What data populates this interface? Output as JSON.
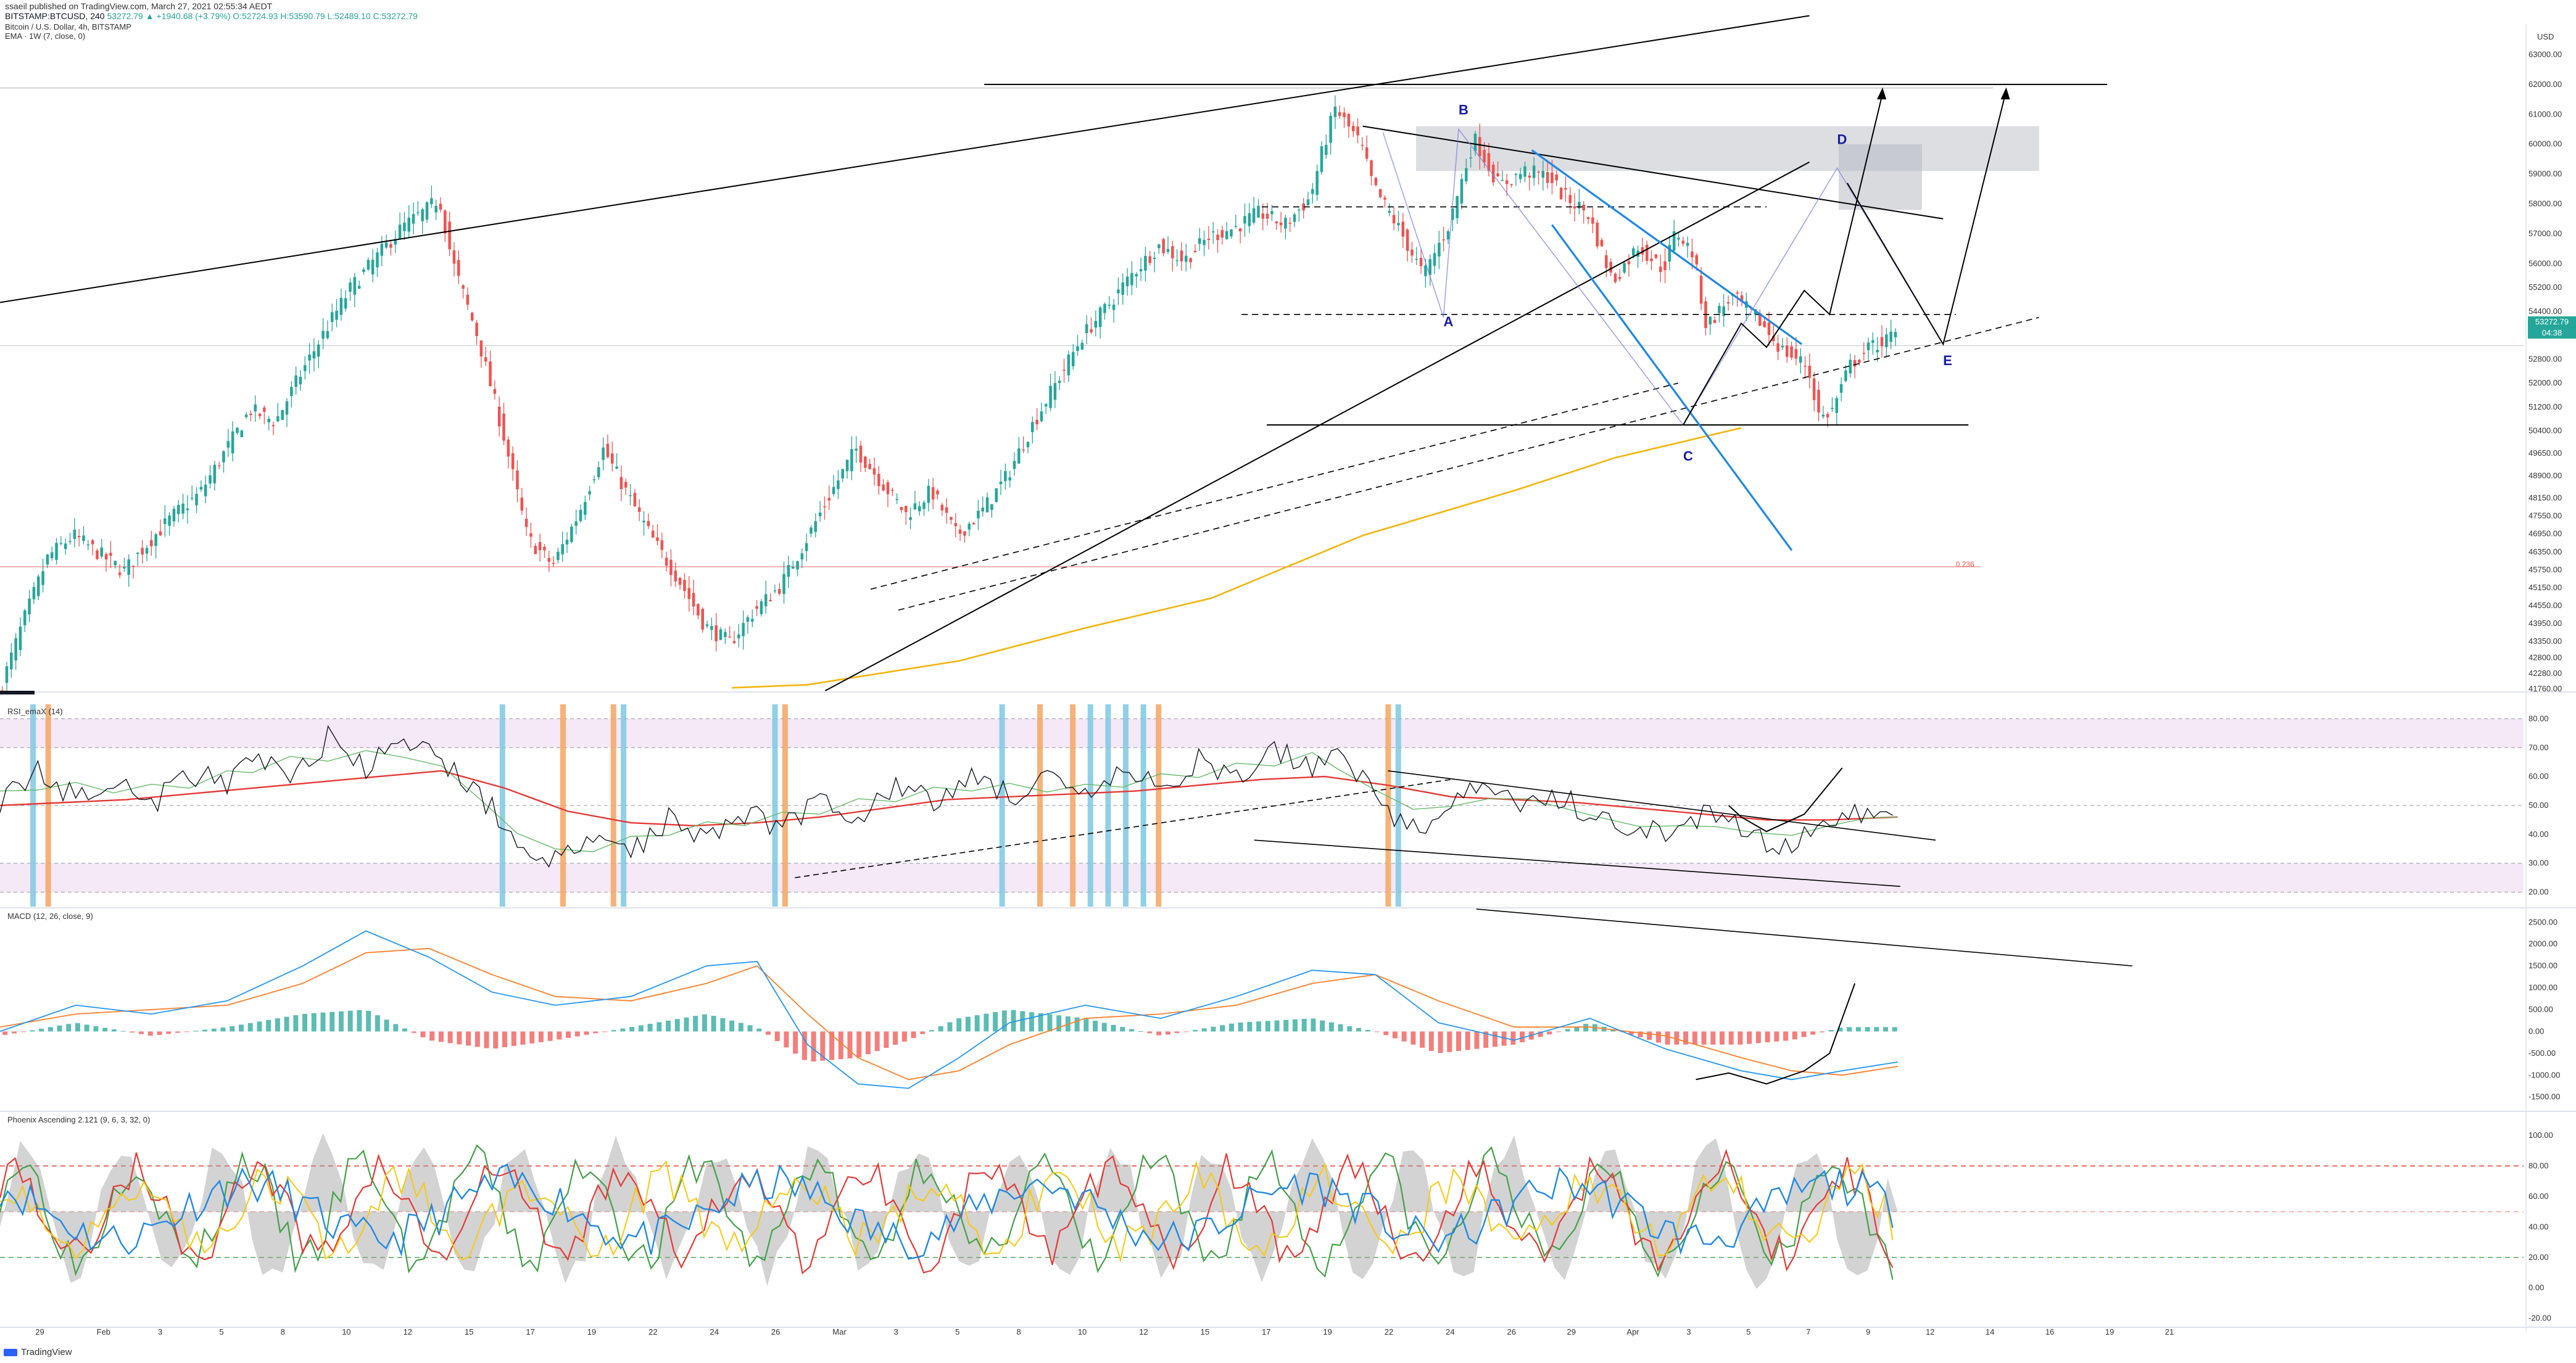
{
  "header": {
    "published": "ssaeil published on TradingView.com, March 27, 2021 02:55:34 AEDT",
    "symbol": "BITSTAMP:BTCUSD, 240",
    "ohlc": "53272.79 ▲ +1940.68 (+3.79%) O:52724.93 H:53590.79 L:52489.10 C:53272.79",
    "title": "Bitcoin / U.S. Dollar, 4h, BITSTAMP",
    "ema_label": "EMA · 1W (7, close, 0)"
  },
  "currency": "USD",
  "price_badge": {
    "value": "53272.79",
    "time": "04:38",
    "color": "#26a69a"
  },
  "footer": {
    "brand": "TradingView"
  },
  "colors": {
    "up": "#26a69a",
    "down": "#ef5350",
    "ema": "#f5b40a",
    "trend_blue": "#1e88e5",
    "fib": "#ef5350"
  },
  "chart_data": [
    {
      "type": "candlestick",
      "title": "Bitcoin / U.S. Dollar, 4h, BITSTAMP",
      "ylim": [
        41700,
        64000
      ],
      "y_ticks": [
        63000,
        62000,
        61000,
        60000,
        59000,
        58000,
        57000,
        56000,
        55200,
        54400,
        53600,
        52800,
        52000,
        51200,
        50400,
        49650,
        48900,
        48150,
        47550,
        46950,
        46350,
        45750,
        45150,
        44550,
        43950,
        43350,
        42800,
        42280,
        41760
      ],
      "x_ticks": [
        "29",
        "Feb",
        "3",
        "5",
        "8",
        "10",
        "12",
        "15",
        "17",
        "19",
        "22",
        "24",
        "26",
        "Mar",
        "3",
        "5",
        "8",
        "10",
        "12",
        "15",
        "17",
        "19",
        "22",
        "24",
        "26",
        "29",
        "Apr",
        "3",
        "5",
        "7",
        "9",
        "12",
        "14",
        "16",
        "19",
        "21"
      ],
      "price_path": [
        [
          0.0,
          41500
        ],
        [
          0.01,
          44000
        ],
        [
          0.02,
          46200
        ],
        [
          0.03,
          46900
        ],
        [
          0.04,
          46300
        ],
        [
          0.05,
          45700
        ],
        [
          0.06,
          46700
        ],
        [
          0.07,
          47600
        ],
        [
          0.08,
          48300
        ],
        [
          0.09,
          49700
        ],
        [
          0.1,
          51100
        ],
        [
          0.11,
          50700
        ],
        [
          0.12,
          52300
        ],
        [
          0.13,
          53800
        ],
        [
          0.14,
          55200
        ],
        [
          0.15,
          56200
        ],
        [
          0.16,
          57200
        ],
        [
          0.17,
          57800
        ],
        [
          0.175,
          58200
        ],
        [
          0.18,
          56100
        ],
        [
          0.19,
          53600
        ],
        [
          0.2,
          50400
        ],
        [
          0.21,
          46800
        ],
        [
          0.22,
          45900
        ],
        [
          0.23,
          47600
        ],
        [
          0.24,
          49800
        ],
        [
          0.25,
          48200
        ],
        [
          0.26,
          46700
        ],
        [
          0.27,
          45400
        ],
        [
          0.28,
          43900
        ],
        [
          0.29,
          43300
        ],
        [
          0.3,
          44400
        ],
        [
          0.31,
          45200
        ],
        [
          0.32,
          46700
        ],
        [
          0.33,
          48300
        ],
        [
          0.34,
          49800
        ],
        [
          0.35,
          48700
        ],
        [
          0.36,
          47600
        ],
        [
          0.37,
          48400
        ],
        [
          0.38,
          46900
        ],
        [
          0.39,
          47700
        ],
        [
          0.4,
          48900
        ],
        [
          0.41,
          50600
        ],
        [
          0.42,
          52100
        ],
        [
          0.43,
          53600
        ],
        [
          0.44,
          54600
        ],
        [
          0.45,
          55700
        ],
        [
          0.46,
          56600
        ],
        [
          0.47,
          56100
        ],
        [
          0.48,
          56900
        ],
        [
          0.49,
          57200
        ],
        [
          0.5,
          57700
        ],
        [
          0.51,
          57300
        ],
        [
          0.52,
          58200
        ],
        [
          0.525,
          59800
        ],
        [
          0.53,
          61200
        ],
        [
          0.54,
          60000
        ],
        [
          0.545,
          58600
        ],
        [
          0.555,
          57200
        ],
        [
          0.565,
          55600
        ],
        [
          0.575,
          57300
        ],
        [
          0.585,
          60200
        ],
        [
          0.595,
          58600
        ],
        [
          0.605,
          59100
        ],
        [
          0.615,
          58900
        ],
        [
          0.62,
          58300
        ],
        [
          0.63,
          57700
        ],
        [
          0.64,
          55400
        ],
        [
          0.65,
          56600
        ],
        [
          0.66,
          55800
        ],
        [
          0.665,
          57100
        ],
        [
          0.672,
          56300
        ],
        [
          0.677,
          53900
        ],
        [
          0.687,
          54900
        ],
        [
          0.697,
          54200
        ],
        [
          0.707,
          53100
        ],
        [
          0.717,
          52600
        ],
        [
          0.722,
          50800
        ],
        [
          0.727,
          51100
        ],
        [
          0.734,
          52600
        ],
        [
          0.742,
          53200
        ],
        [
          0.752,
          53600
        ]
      ],
      "series": [
        {
          "name": "EMA · 1W (7, close, 0)",
          "points": [
            [
              0.29,
              41800
            ],
            [
              0.32,
              41900
            ],
            [
              0.38,
              42700
            ],
            [
              0.43,
              43800
            ],
            [
              0.48,
              44800
            ],
            [
              0.54,
              46900
            ],
            [
              0.6,
              48400
            ],
            [
              0.64,
              49500
            ],
            [
              0.69,
              50500
            ]
          ]
        }
      ],
      "annotations": [
        {
          "type": "label",
          "text": "A",
          "x": 0.572,
          "y": 53900
        },
        {
          "type": "label",
          "text": "B",
          "x": 0.578,
          "y": 61000
        },
        {
          "type": "label",
          "text": "C",
          "x": 0.667,
          "y": 49400
        },
        {
          "type": "label",
          "text": "D",
          "x": 0.728,
          "y": 60000
        },
        {
          "type": "label",
          "text": "E",
          "x": 0.77,
          "y": 52600
        },
        {
          "type": "label",
          "text": "0.236",
          "x": 0.775,
          "y": 45850
        }
      ]
    },
    {
      "type": "line",
      "title": "RSI_emaX (14)",
      "ylim": [
        15,
        85
      ],
      "y_ticks": [
        80,
        70,
        60,
        50,
        40,
        30,
        20
      ],
      "overbought_band": [
        70,
        80
      ],
      "oversold_band": [
        20,
        30
      ],
      "series": [
        {
          "name": "RSI",
          "points": [
            [
              0.0,
              52
            ],
            [
              0.015,
              61
            ],
            [
              0.03,
              53
            ],
            [
              0.045,
              60
            ],
            [
              0.06,
              50
            ],
            [
              0.075,
              62
            ],
            [
              0.09,
              56
            ],
            [
              0.1,
              68
            ],
            [
              0.115,
              60
            ],
            [
              0.13,
              73
            ],
            [
              0.145,
              63
            ],
            [
              0.16,
              71
            ],
            [
              0.175,
              66
            ],
            [
              0.19,
              54
            ],
            [
              0.205,
              37
            ],
            [
              0.22,
              30
            ],
            [
              0.235,
              38
            ],
            [
              0.25,
              34
            ],
            [
              0.265,
              46
            ],
            [
              0.28,
              39
            ],
            [
              0.295,
              48
            ],
            [
              0.31,
              42
            ],
            [
              0.325,
              53
            ],
            [
              0.34,
              46
            ],
            [
              0.355,
              58
            ],
            [
              0.37,
              50
            ],
            [
              0.385,
              61
            ],
            [
              0.4,
              54
            ],
            [
              0.415,
              58
            ],
            [
              0.43,
              52
            ],
            [
              0.445,
              62
            ],
            [
              0.46,
              55
            ],
            [
              0.475,
              66
            ],
            [
              0.49,
              58
            ],
            [
              0.505,
              70
            ],
            [
              0.52,
              63
            ],
            [
              0.53,
              72
            ],
            [
              0.545,
              53
            ],
            [
              0.56,
              41
            ],
            [
              0.575,
              52
            ],
            [
              0.59,
              56
            ],
            [
              0.605,
              49
            ],
            [
              0.62,
              52
            ],
            [
              0.635,
              46
            ],
            [
              0.65,
              39
            ],
            [
              0.665,
              43
            ],
            [
              0.68,
              47
            ],
            [
              0.695,
              38
            ],
            [
              0.71,
              37
            ],
            [
              0.725,
              44
            ],
            [
              0.74,
              48
            ],
            [
              0.752,
              45
            ]
          ]
        },
        {
          "name": "RSI EMA",
          "points": [
            [
              0.0,
              50
            ],
            [
              0.05,
              52
            ],
            [
              0.1,
              56
            ],
            [
              0.15,
              60
            ],
            [
              0.175,
              62
            ],
            [
              0.2,
              56
            ],
            [
              0.225,
              48
            ],
            [
              0.25,
              44
            ],
            [
              0.275,
              43
            ],
            [
              0.3,
              44
            ],
            [
              0.325,
              46
            ],
            [
              0.35,
              49
            ],
            [
              0.375,
              52
            ],
            [
              0.4,
              53
            ],
            [
              0.425,
              54
            ],
            [
              0.45,
              55
            ],
            [
              0.475,
              57
            ],
            [
              0.5,
              59
            ],
            [
              0.525,
              60
            ],
            [
              0.55,
              57
            ],
            [
              0.575,
              53
            ],
            [
              0.6,
              52
            ],
            [
              0.625,
              51
            ],
            [
              0.65,
              49
            ],
            [
              0.675,
              47
            ],
            [
              0.7,
              45
            ],
            [
              0.725,
              45
            ],
            [
              0.752,
              46
            ]
          ]
        }
      ]
    },
    {
      "type": "bar",
      "title": "MACD (12, 26, close, 9)",
      "ylim": [
        -1800,
        2800
      ],
      "y_ticks": [
        2500,
        2000,
        1500,
        1000,
        500,
        0,
        -500,
        -1000,
        -1500
      ],
      "series": [
        {
          "name": "MACD",
          "points": [
            [
              0.0,
              0
            ],
            [
              0.03,
              600
            ],
            [
              0.06,
              400
            ],
            [
              0.09,
              700
            ],
            [
              0.12,
              1500
            ],
            [
              0.145,
              2300
            ],
            [
              0.17,
              1700
            ],
            [
              0.195,
              900
            ],
            [
              0.22,
              600
            ],
            [
              0.25,
              800
            ],
            [
              0.28,
              1500
            ],
            [
              0.3,
              1600
            ],
            [
              0.32,
              -300
            ],
            [
              0.34,
              -1200
            ],
            [
              0.36,
              -1300
            ],
            [
              0.38,
              -600
            ],
            [
              0.4,
              200
            ],
            [
              0.43,
              600
            ],
            [
              0.46,
              300
            ],
            [
              0.49,
              800
            ],
            [
              0.52,
              1400
            ],
            [
              0.545,
              1300
            ],
            [
              0.57,
              200
            ],
            [
              0.6,
              -200
            ],
            [
              0.63,
              300
            ],
            [
              0.66,
              -400
            ],
            [
              0.69,
              -900
            ],
            [
              0.71,
              -1100
            ],
            [
              0.73,
              -900
            ],
            [
              0.752,
              -700
            ]
          ]
        },
        {
          "name": "Signal",
          "points": [
            [
              0.0,
              100
            ],
            [
              0.03,
              400
            ],
            [
              0.06,
              500
            ],
            [
              0.09,
              600
            ],
            [
              0.12,
              1100
            ],
            [
              0.145,
              1800
            ],
            [
              0.17,
              1900
            ],
            [
              0.195,
              1300
            ],
            [
              0.22,
              800
            ],
            [
              0.25,
              700
            ],
            [
              0.28,
              1100
            ],
            [
              0.3,
              1500
            ],
            [
              0.32,
              400
            ],
            [
              0.34,
              -600
            ],
            [
              0.36,
              -1100
            ],
            [
              0.38,
              -900
            ],
            [
              0.4,
              -300
            ],
            [
              0.43,
              300
            ],
            [
              0.46,
              400
            ],
            [
              0.49,
              600
            ],
            [
              0.52,
              1100
            ],
            [
              0.545,
              1300
            ],
            [
              0.57,
              700
            ],
            [
              0.6,
              100
            ],
            [
              0.63,
              100
            ],
            [
              0.66,
              -100
            ],
            [
              0.69,
              -600
            ],
            [
              0.71,
              -900
            ],
            [
              0.73,
              -1000
            ],
            [
              0.752,
              -800
            ]
          ]
        }
      ]
    },
    {
      "type": "line",
      "title": "Phoenix Ascending 2.121 (9, 6, 3, 32, 0)",
      "ylim": [
        -25,
        115
      ],
      "y_ticks": [
        100,
        80,
        60,
        40,
        20,
        0,
        -20
      ],
      "reference_lines": [
        80,
        50,
        20
      ]
    }
  ]
}
